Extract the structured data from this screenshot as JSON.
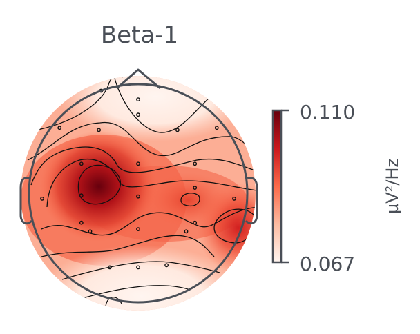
{
  "chart_data": {
    "type": "heatmap",
    "title": "Beta-1",
    "colorbar": {
      "label": "µV²/Hz",
      "min": 0.067,
      "max": 0.11,
      "min_label": "0.067",
      "max_label": "0.110",
      "colormap": [
        "#fff5f0",
        "#fcbba1",
        "#fb6a4a",
        "#cb181d",
        "#67000d"
      ]
    },
    "grid": false,
    "sensors": [
      {
        "x": 0.0,
        "y": 0.86
      },
      {
        "x": -0.34,
        "y": 0.94
      },
      {
        "x": 0.0,
        "y": 0.72
      },
      {
        "x": -0.36,
        "y": 0.58
      },
      {
        "x": -0.72,
        "y": 0.6
      },
      {
        "x": 0.36,
        "y": 0.58
      },
      {
        "x": 0.72,
        "y": 0.6
      },
      {
        "x": -0.52,
        "y": 0.27
      },
      {
        "x": 0.0,
        "y": 0.27
      },
      {
        "x": 0.52,
        "y": 0.27
      },
      {
        "x": -0.88,
        "y": -0.05
      },
      {
        "x": -0.52,
        "y": -0.02
      },
      {
        "x": 0.0,
        "y": -0.03
      },
      {
        "x": 0.52,
        "y": 0.05
      },
      {
        "x": 0.88,
        "y": -0.05
      },
      {
        "x": -0.52,
        "y": -0.27
      },
      {
        "x": 0.52,
        "y": -0.27
      },
      {
        "x": -0.44,
        "y": -0.35
      },
      {
        "x": 0.0,
        "y": -0.33
      },
      {
        "x": 0.44,
        "y": -0.35
      },
      {
        "x": -0.26,
        "y": -0.68
      },
      {
        "x": 0.0,
        "y": -0.68
      },
      {
        "x": 0.26,
        "y": -0.66
      }
    ]
  }
}
